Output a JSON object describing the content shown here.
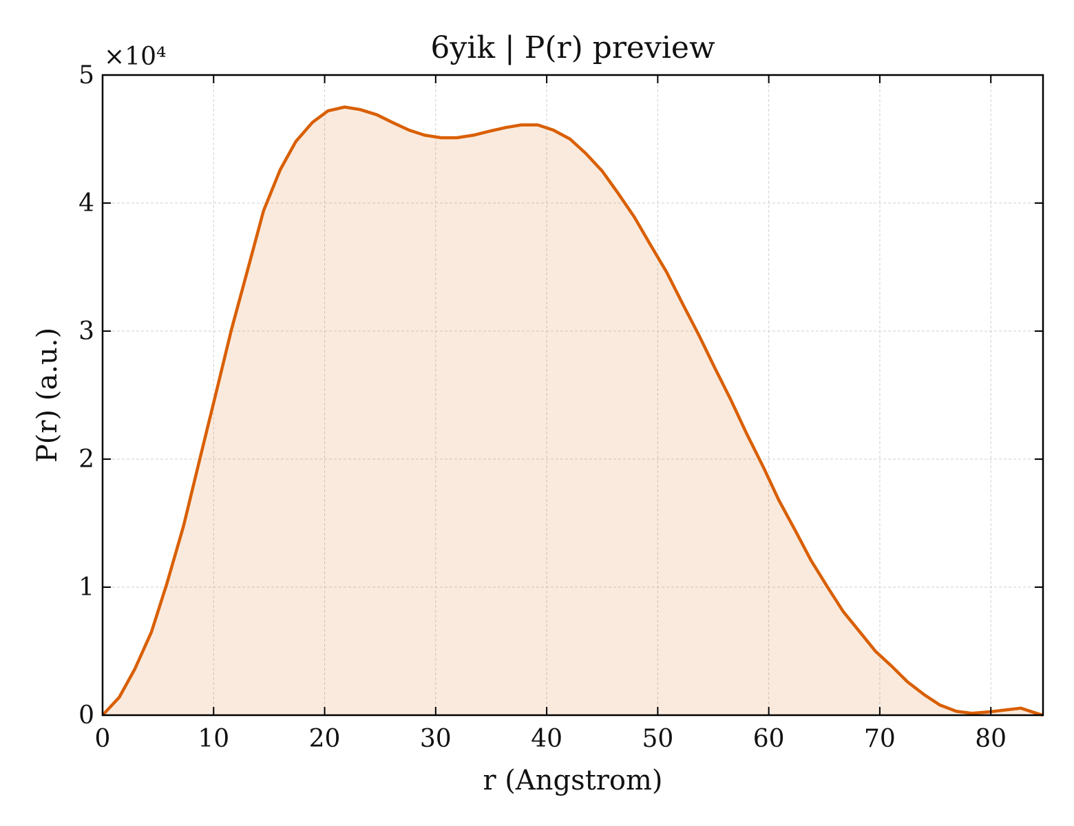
{
  "chart_data": {
    "type": "area",
    "title": "6yik | P(r) preview",
    "xlabel": "r (Angstrom)",
    "ylabel": "P(r) (a.u.)",
    "y_offset_label": "×10⁴",
    "xlim": [
      0,
      84.7
    ],
    "ylim": [
      0,
      50000
    ],
    "x_ticks": [
      0,
      10,
      20,
      30,
      40,
      50,
      60,
      70,
      80
    ],
    "x_tick_labels": [
      "0",
      "10",
      "20",
      "30",
      "40",
      "50",
      "60",
      "70",
      "80"
    ],
    "y_ticks": [
      0,
      10000,
      20000,
      30000,
      40000,
      50000
    ],
    "y_tick_labels": [
      "0",
      "1",
      "2",
      "3",
      "4",
      "5"
    ],
    "grid": true,
    "series": [
      {
        "color": "#d95f02",
        "fill_color": "#d95f02",
        "fill_opacity": 0.13,
        "x": [
          0,
          1.5,
          2.9,
          4.4,
          5.8,
          7.3,
          8.7,
          10.2,
          11.6,
          13.1,
          14.5,
          16.0,
          17.4,
          18.9,
          20.3,
          21.8,
          23.2,
          24.7,
          26.1,
          27.6,
          29.0,
          30.5,
          31.9,
          33.4,
          34.8,
          36.3,
          37.7,
          39.2,
          40.6,
          42.1,
          43.5,
          45.0,
          46.4,
          47.9,
          49.3,
          50.8,
          52.2,
          53.7,
          55.1,
          56.6,
          58.0,
          59.5,
          60.9,
          62.4,
          63.8,
          65.3,
          66.7,
          68.2,
          69.6,
          71.1,
          72.5,
          74.0,
          75.4,
          76.9,
          78.3,
          79.8,
          81.2,
          82.7,
          84.1,
          84.7
        ],
        "y": [
          0,
          1400,
          3600,
          6500,
          10300,
          14800,
          19800,
          25100,
          30100,
          34900,
          39400,
          42600,
          44800,
          46300,
          47200,
          47500,
          47300,
          46900,
          46300,
          45700,
          45300,
          45100,
          45100,
          45300,
          45600,
          45900,
          46100,
          46100,
          45700,
          45000,
          43900,
          42500,
          40800,
          38900,
          36800,
          34600,
          32200,
          29700,
          27200,
          24600,
          22000,
          19400,
          16800,
          14400,
          12100,
          10000,
          8100,
          6500,
          5000,
          3800,
          2600,
          1600,
          800,
          300,
          150,
          250,
          400,
          550,
          150,
          0
        ]
      }
    ]
  }
}
